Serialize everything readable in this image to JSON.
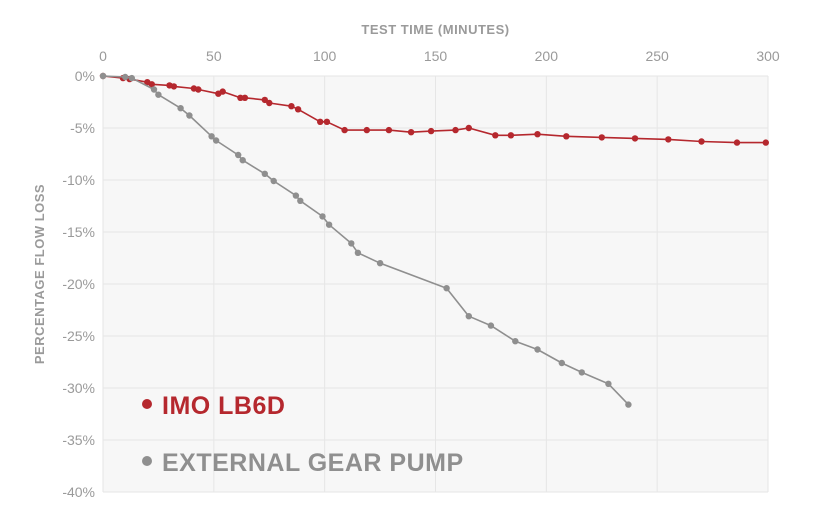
{
  "chart_data": {
    "type": "line",
    "xlabel": "TEST TIME (MINUTES)",
    "ylabel": "PERCENTAGE FLOW LOSS",
    "xlim": [
      0,
      300
    ],
    "ylim": [
      -40,
      0
    ],
    "x_ticks": [
      "0",
      "50",
      "100",
      "150",
      "200",
      "250",
      "300"
    ],
    "y_ticks": [
      "0%",
      "-5%",
      "-10%",
      "-15%",
      "-20%",
      "-25%",
      "-30%",
      "-35%",
      "-40%"
    ],
    "x_tick_values": [
      0,
      50,
      100,
      150,
      200,
      250,
      300
    ],
    "y_tick_values": [
      0,
      -5,
      -10,
      -15,
      -20,
      -25,
      -30,
      -35,
      -40
    ],
    "grid": true,
    "legend_position": "bottom-left",
    "series": [
      {
        "name": "IMO LB6D",
        "color": "#b5282e",
        "points": [
          [
            0,
            0
          ],
          [
            9,
            -0.2
          ],
          [
            12,
            -0.3
          ],
          [
            20,
            -0.6
          ],
          [
            22,
            -0.8
          ],
          [
            30,
            -0.9
          ],
          [
            32,
            -1.0
          ],
          [
            41,
            -1.2
          ],
          [
            43,
            -1.3
          ],
          [
            52,
            -1.7
          ],
          [
            54,
            -1.5
          ],
          [
            62,
            -2.1
          ],
          [
            64,
            -2.1
          ],
          [
            73,
            -2.3
          ],
          [
            75,
            -2.6
          ],
          [
            85,
            -2.9
          ],
          [
            88,
            -3.2
          ],
          [
            98,
            -4.4
          ],
          [
            101,
            -4.4
          ],
          [
            109,
            -5.2
          ],
          [
            119,
            -5.2
          ],
          [
            129,
            -5.2
          ],
          [
            139,
            -5.4
          ],
          [
            148,
            -5.3
          ],
          [
            159,
            -5.2
          ],
          [
            165,
            -5.0
          ],
          [
            177,
            -5.7
          ],
          [
            184,
            -5.7
          ],
          [
            196,
            -5.6
          ],
          [
            209,
            -5.8
          ],
          [
            225,
            -5.9
          ],
          [
            240,
            -6.0
          ],
          [
            255,
            -6.1
          ],
          [
            270,
            -6.3
          ],
          [
            286,
            -6.4
          ],
          [
            299,
            -6.4
          ]
        ]
      },
      {
        "name": "EXTERNAL GEAR PUMP",
        "color": "#8f8f8f",
        "points": [
          [
            0,
            0
          ],
          [
            10,
            -0.1
          ],
          [
            13,
            -0.2
          ],
          [
            23,
            -1.3
          ],
          [
            25,
            -1.8
          ],
          [
            35,
            -3.1
          ],
          [
            39,
            -3.8
          ],
          [
            49,
            -5.8
          ],
          [
            51,
            -6.2
          ],
          [
            61,
            -7.6
          ],
          [
            63,
            -8.1
          ],
          [
            73,
            -9.4
          ],
          [
            77,
            -10.1
          ],
          [
            87,
            -11.5
          ],
          [
            89,
            -12.0
          ],
          [
            99,
            -13.5
          ],
          [
            102,
            -14.3
          ],
          [
            112,
            -16.1
          ],
          [
            115,
            -17.0
          ],
          [
            125,
            -18.0
          ],
          [
            155,
            -20.4
          ],
          [
            165,
            -23.1
          ],
          [
            175,
            -24.0
          ],
          [
            186,
            -25.5
          ],
          [
            196,
            -26.3
          ],
          [
            207,
            -27.6
          ],
          [
            216,
            -28.5
          ],
          [
            228,
            -29.6
          ],
          [
            237,
            -31.6
          ]
        ]
      }
    ]
  }
}
